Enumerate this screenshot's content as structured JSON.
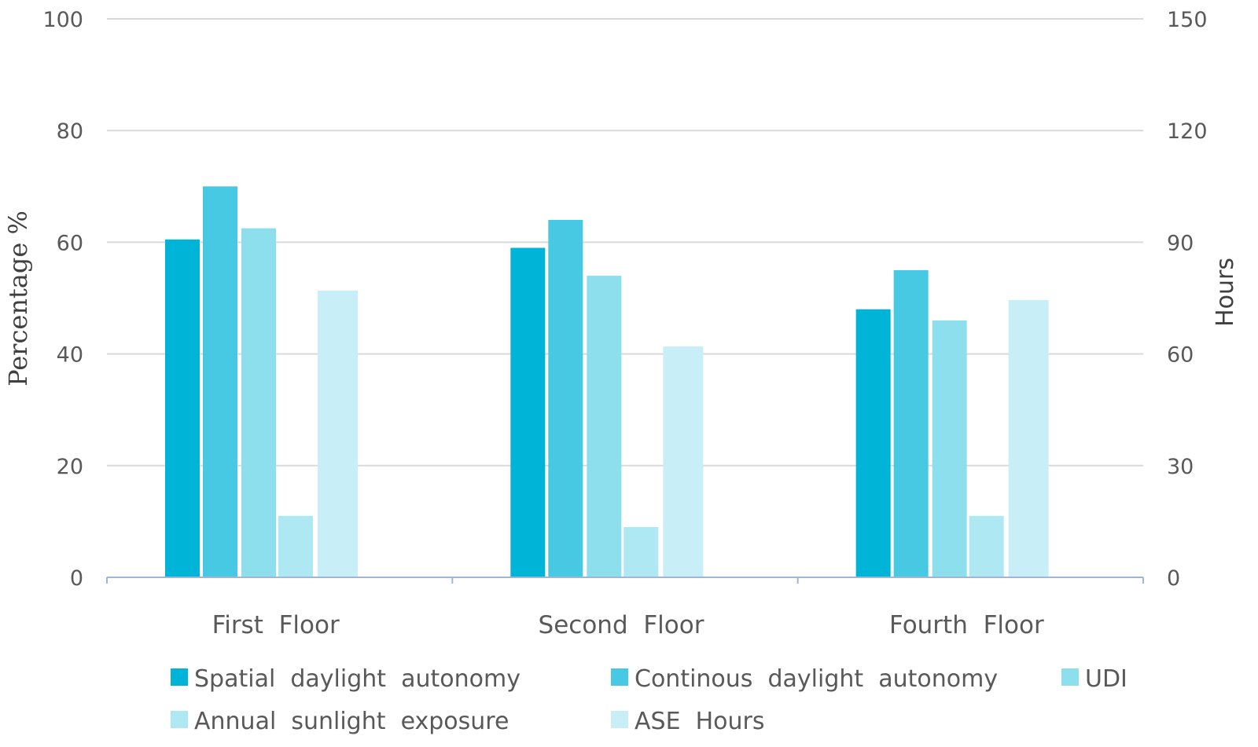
{
  "chart_data": {
    "type": "bar",
    "categories": [
      "First  Floor",
      "Second  Floor",
      "Fourth  Floor"
    ],
    "series": [
      {
        "name": "Spatial  daylight  autonomy",
        "axis": "left",
        "color": "#00b4d8",
        "values": [
          60.5,
          59,
          48
        ]
      },
      {
        "name": "Continous  daylight  autonomy",
        "axis": "left",
        "color": "#48c9e3",
        "values": [
          70,
          64,
          55
        ]
      },
      {
        "name": "UDI",
        "axis": "left",
        "color": "#8edfee",
        "values": [
          62.5,
          54,
          46
        ]
      },
      {
        "name": "Annual  sunlight  exposure",
        "axis": "left",
        "color": "#ade8f3",
        "values": [
          11,
          9,
          11
        ]
      },
      {
        "name": "ASE  Hours",
        "axis": "right",
        "color": "#c8eff7",
        "values": [
          77,
          62,
          74.5
        ]
      }
    ],
    "ylabel": "Percentage %",
    "ylabel_right": "Hours",
    "ylim": [
      0,
      100
    ],
    "ylim_right": [
      0,
      150
    ],
    "yticks": [
      0,
      20,
      40,
      60,
      80,
      100
    ],
    "yticks_right": [
      0,
      30,
      60,
      90,
      120,
      150
    ],
    "grid": true,
    "legend": "bottom"
  }
}
